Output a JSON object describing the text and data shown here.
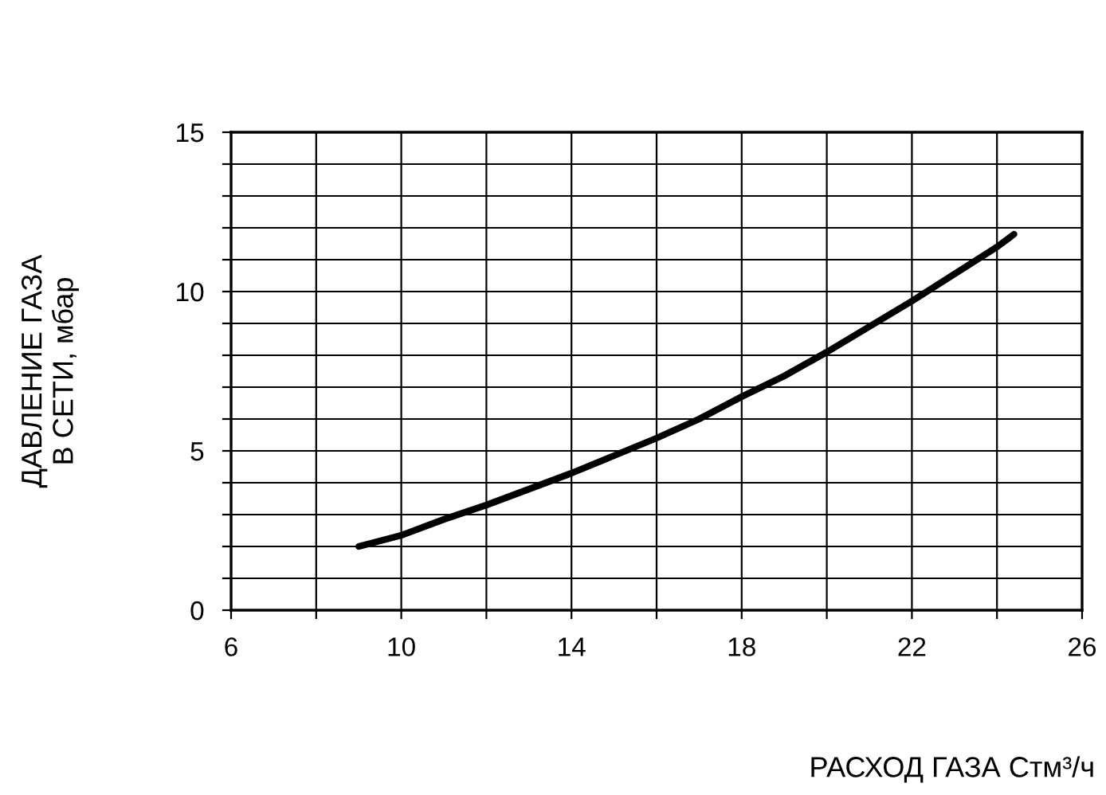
{
  "chart_data": {
    "type": "line",
    "xlabel": "РАСХОД ГАЗА Стм³/ч",
    "ylabel": "ДАВЛЕНИЕ ГАЗА\nВ СЕТИ, мбар",
    "x": [
      9,
      10,
      11,
      12,
      13,
      14,
      15,
      16,
      17,
      18,
      19,
      20,
      21,
      22,
      23,
      24,
      24.4
    ],
    "series": [
      {
        "color": "#000000",
        "values": [
          2.0,
          2.35,
          2.85,
          3.3,
          3.8,
          4.3,
          4.85,
          5.4,
          6.0,
          6.7,
          7.35,
          8.1,
          8.9,
          9.7,
          10.55,
          11.4,
          11.8
        ]
      }
    ],
    "xlim": [
      6,
      26
    ],
    "ylim": [
      0,
      15
    ],
    "xticks": [
      6,
      {
        "value": 8,
        "label": null
      },
      10,
      {
        "value": 12,
        "label": null
      },
      14,
      {
        "value": 16,
        "label": null
      },
      18,
      {
        "value": 20,
        "label": null
      },
      22,
      {
        "value": 24,
        "label": null
      },
      26
    ],
    "yticks": [
      0,
      {
        "value": 1,
        "label": null
      },
      {
        "value": 2,
        "label": null
      },
      {
        "value": 3,
        "label": null
      },
      {
        "value": 4,
        "label": null
      },
      5,
      {
        "value": 6,
        "label": null
      },
      {
        "value": 7,
        "label": null
      },
      {
        "value": 8,
        "label": null
      },
      {
        "value": 9,
        "label": null
      },
      10,
      {
        "value": 11,
        "label": null
      },
      {
        "value": 12,
        "label": null
      },
      {
        "value": 13,
        "label": null
      },
      {
        "value": 14,
        "label": null
      },
      15
    ],
    "grid": true,
    "marker": "none",
    "line_style": "solid",
    "legend": false
  }
}
